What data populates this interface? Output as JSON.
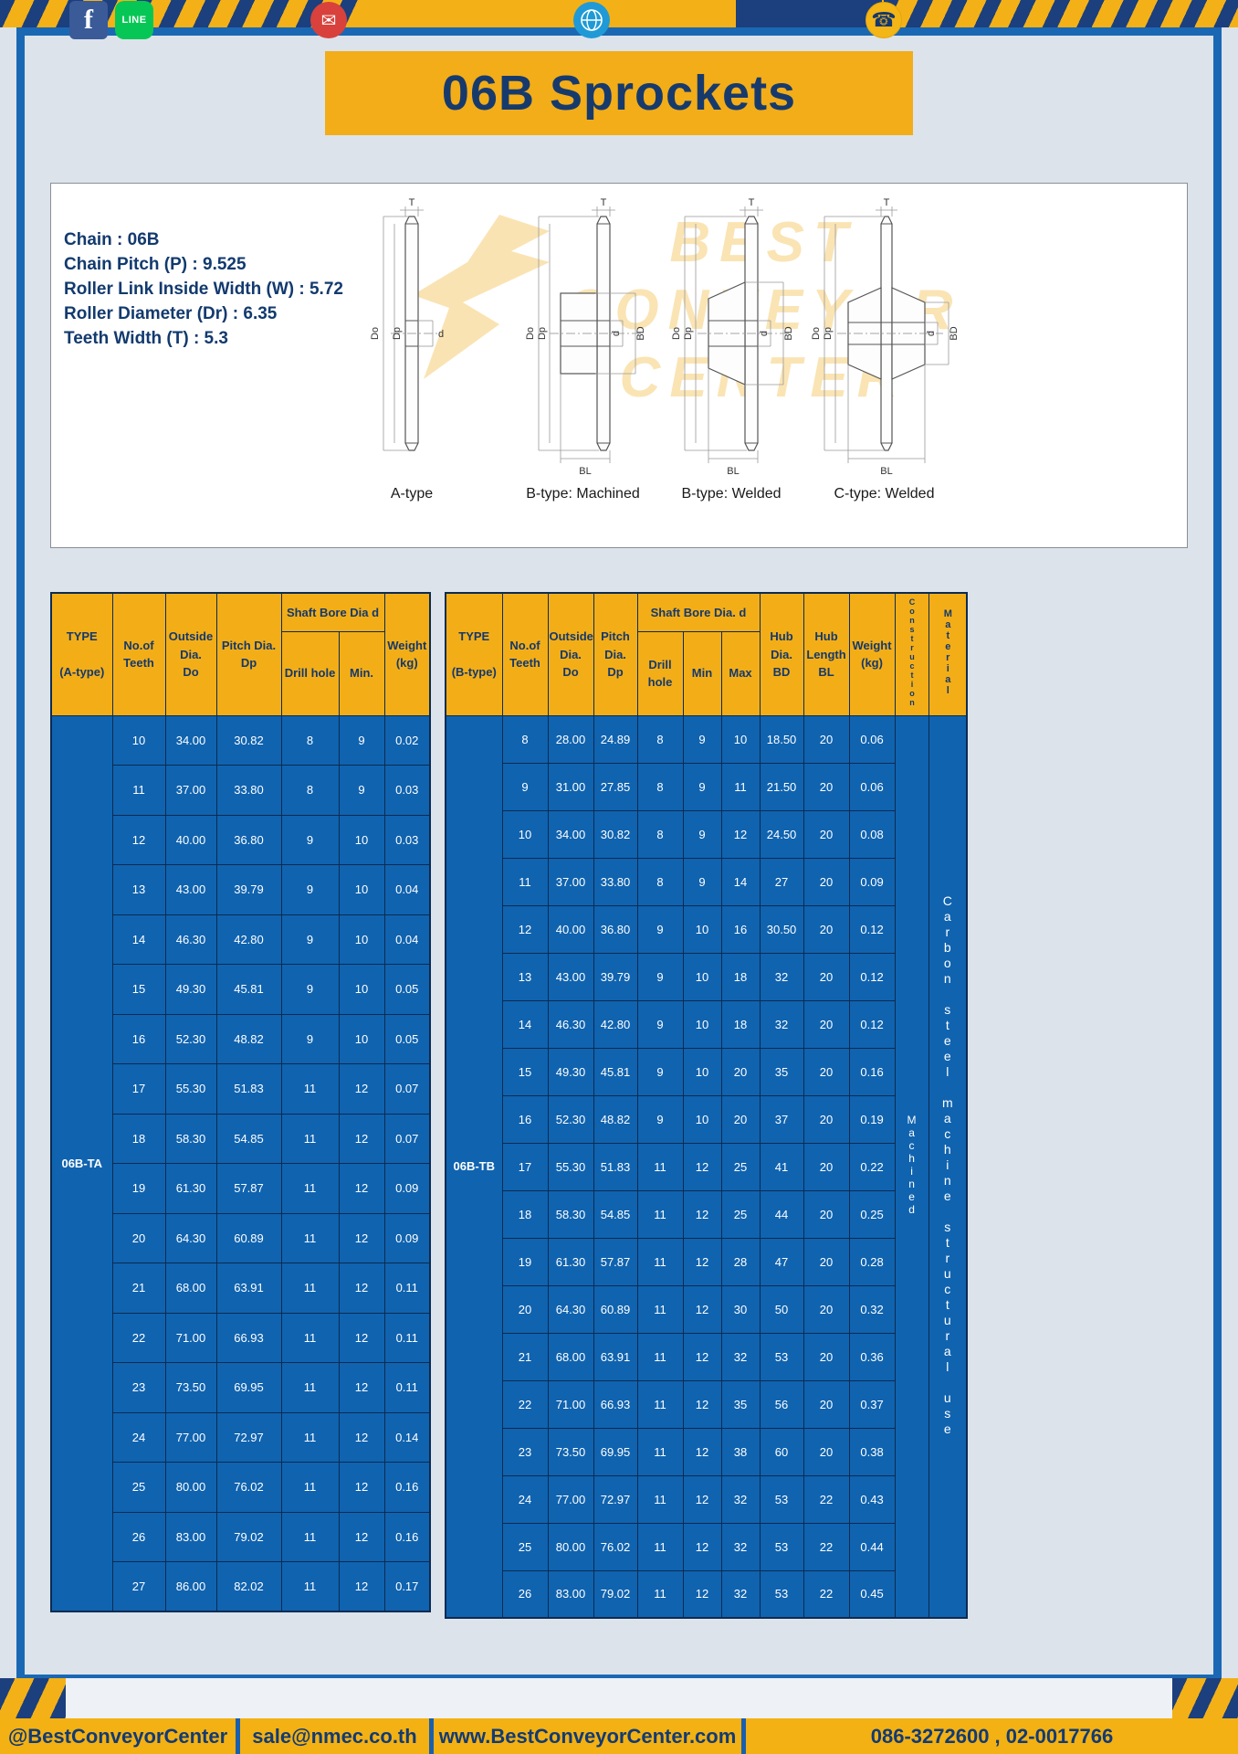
{
  "title": "06B Sprockets",
  "specs": {
    "lines": [
      "Chain : 06B",
      "Chain Pitch (P) : 9.525",
      "Roller Link Inside Width (W) : 5.72",
      "Roller Diameter (Dr) : 6.35",
      "Teeth Width (T) : 5.3"
    ]
  },
  "watermark": {
    "lines": [
      "BEST",
      "CONVEYOR",
      "CENTER"
    ]
  },
  "diagrams": {
    "captions": [
      "A-type",
      "B-type: Machined",
      "B-type: Welded",
      "C-type: Welded"
    ],
    "labels": {
      "t": "T",
      "do": "Do",
      "dp": "Dp",
      "d": "d",
      "bd": "BD",
      "bl": "BL"
    }
  },
  "table_a": {
    "lead": "06B-TA",
    "headers": {
      "type": "TYPE\n\n(A-type)",
      "teeth": "No.of\nTeeth",
      "outside": "Outside\nDia.\nDo",
      "pitch": "Pitch Dia.\nDp",
      "bore_group": "Shaft Bore Dia d",
      "drill": "Drill hole",
      "min": "Min.",
      "weight": "Weight\n(kg)"
    },
    "rows": [
      [
        "10",
        "34.00",
        "30.82",
        "8",
        "9",
        "0.02"
      ],
      [
        "11",
        "37.00",
        "33.80",
        "8",
        "9",
        "0.03"
      ],
      [
        "12",
        "40.00",
        "36.80",
        "9",
        "10",
        "0.03"
      ],
      [
        "13",
        "43.00",
        "39.79",
        "9",
        "10",
        "0.04"
      ],
      [
        "14",
        "46.30",
        "42.80",
        "9",
        "10",
        "0.04"
      ],
      [
        "15",
        "49.30",
        "45.81",
        "9",
        "10",
        "0.05"
      ],
      [
        "16",
        "52.30",
        "48.82",
        "9",
        "10",
        "0.05"
      ],
      [
        "17",
        "55.30",
        "51.83",
        "11",
        "12",
        "0.07"
      ],
      [
        "18",
        "58.30",
        "54.85",
        "11",
        "12",
        "0.07"
      ],
      [
        "19",
        "61.30",
        "57.87",
        "11",
        "12",
        "0.09"
      ],
      [
        "20",
        "64.30",
        "60.89",
        "11",
        "12",
        "0.09"
      ],
      [
        "21",
        "68.00",
        "63.91",
        "11",
        "12",
        "0.11"
      ],
      [
        "22",
        "71.00",
        "66.93",
        "11",
        "12",
        "0.11"
      ],
      [
        "23",
        "73.50",
        "69.95",
        "11",
        "12",
        "0.11"
      ],
      [
        "24",
        "77.00",
        "72.97",
        "11",
        "12",
        "0.14"
      ],
      [
        "25",
        "80.00",
        "76.02",
        "11",
        "12",
        "0.16"
      ],
      [
        "26",
        "83.00",
        "79.02",
        "11",
        "12",
        "0.16"
      ],
      [
        "27",
        "86.00",
        "82.02",
        "11",
        "12",
        "0.17"
      ]
    ]
  },
  "table_b": {
    "lead": "06B-TB",
    "construction": "Machined",
    "material": "Carbon steel machine structural use",
    "headers": {
      "type": "TYPE\n\n(B-type)",
      "teeth": "No.of\nTeeth",
      "outside": "Outside\nDia.\nDo",
      "pitch": "Pitch\nDia.\nDp",
      "bore_group": "Shaft Bore Dia. d",
      "drill": "Drill hole",
      "min": "Min",
      "max": "Max",
      "hub_dia": "Hub\nDia.\nBD",
      "hub_len": "Hub\nLength\nBL",
      "weight": "Weight\n(kg)",
      "construction": "Construction",
      "material": "Material"
    },
    "rows": [
      [
        "8",
        "28.00",
        "24.89",
        "8",
        "9",
        "10",
        "18.50",
        "20",
        "0.06"
      ],
      [
        "9",
        "31.00",
        "27.85",
        "8",
        "9",
        "11",
        "21.50",
        "20",
        "0.06"
      ],
      [
        "10",
        "34.00",
        "30.82",
        "8",
        "9",
        "12",
        "24.50",
        "20",
        "0.08"
      ],
      [
        "11",
        "37.00",
        "33.80",
        "8",
        "9",
        "14",
        "27",
        "20",
        "0.09"
      ],
      [
        "12",
        "40.00",
        "36.80",
        "9",
        "10",
        "16",
        "30.50",
        "20",
        "0.12"
      ],
      [
        "13",
        "43.00",
        "39.79",
        "9",
        "10",
        "18",
        "32",
        "20",
        "0.12"
      ],
      [
        "14",
        "46.30",
        "42.80",
        "9",
        "10",
        "18",
        "32",
        "20",
        "0.12"
      ],
      [
        "15",
        "49.30",
        "45.81",
        "9",
        "10",
        "20",
        "35",
        "20",
        "0.16"
      ],
      [
        "16",
        "52.30",
        "48.82",
        "9",
        "10",
        "20",
        "37",
        "20",
        "0.19"
      ],
      [
        "17",
        "55.30",
        "51.83",
        "11",
        "12",
        "25",
        "41",
        "20",
        "0.22"
      ],
      [
        "18",
        "58.30",
        "54.85",
        "11",
        "12",
        "25",
        "44",
        "20",
        "0.25"
      ],
      [
        "19",
        "61.30",
        "57.87",
        "11",
        "12",
        "28",
        "47",
        "20",
        "0.28"
      ],
      [
        "20",
        "64.30",
        "60.89",
        "11",
        "12",
        "30",
        "50",
        "20",
        "0.32"
      ],
      [
        "21",
        "68.00",
        "63.91",
        "11",
        "12",
        "32",
        "53",
        "20",
        "0.36"
      ],
      [
        "22",
        "71.00",
        "66.93",
        "11",
        "12",
        "35",
        "56",
        "20",
        "0.37"
      ],
      [
        "23",
        "73.50",
        "69.95",
        "11",
        "12",
        "38",
        "60",
        "20",
        "0.38"
      ],
      [
        "24",
        "77.00",
        "72.97",
        "11",
        "12",
        "32",
        "53",
        "22",
        "0.43"
      ],
      [
        "25",
        "80.00",
        "76.02",
        "11",
        "12",
        "32",
        "53",
        "22",
        "0.44"
      ],
      [
        "26",
        "83.00",
        "79.02",
        "11",
        "12",
        "32",
        "53",
        "22",
        "0.45"
      ]
    ]
  },
  "footer": {
    "facebook_letter": "f",
    "line_label": "LINE",
    "mail_glyph": "✉",
    "phone_glyph": "☎",
    "facebook_line_text": "@BestConveyorCenter",
    "email_text": "sale@nmec.co.th",
    "web_text": "www.BestConveyorCenter.com",
    "phone_text": "086-3272600 , 02-0017766"
  }
}
